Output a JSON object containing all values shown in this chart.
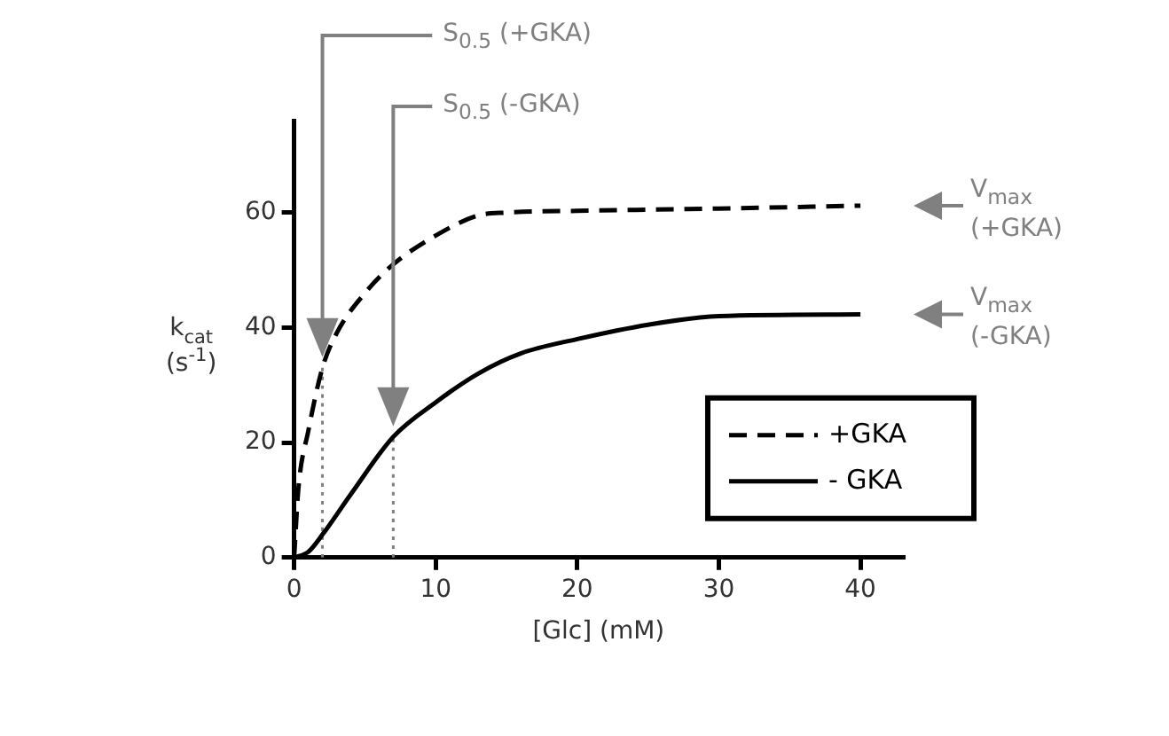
{
  "chart_data": {
    "type": "line",
    "xlabel": "[Glc] (mM)",
    "ylabel": "k$_{cat}$ (s$^{-1}$)",
    "xlim": [
      0,
      43
    ],
    "ylim": [
      0,
      76
    ],
    "xticks": [
      0,
      10,
      20,
      30,
      40
    ],
    "yticks": [
      0,
      20,
      40,
      60
    ],
    "legend": "bottom right",
    "marker": "none",
    "series": [
      {
        "name": "+GKA",
        "color": "#000000",
        "line_style": "dashed",
        "x": [
          0,
          0.3,
          1,
          2,
          3,
          5,
          7,
          10,
          13,
          15,
          20,
          30,
          40
        ],
        "values": [
          0,
          12,
          22,
          33,
          39,
          46,
          51,
          56,
          59.5,
          60,
          60.3,
          60.7,
          61.2
        ]
      },
      {
        "name": "- GKA",
        "color": "#000000",
        "line_style": "solid",
        "x": [
          0,
          1,
          2,
          4,
          7,
          10,
          13,
          16,
          20,
          25,
          30,
          40
        ],
        "values": [
          0,
          1,
          4,
          11,
          21,
          27,
          32,
          35.5,
          38,
          40.5,
          42,
          42.3
        ]
      },
      {
        "color": "#808080",
        "line_style": "dotted",
        "x": [
          2,
          2
        ],
        "values": [
          0,
          33
        ]
      },
      {
        "color": "#808080",
        "line_style": "dotted",
        "x": [
          7,
          7
        ],
        "values": [
          0,
          21
        ]
      }
    ],
    "annotations": [
      "S$_{0.5}$ (+GKA)",
      "S$_{0.5}$ (-GKA)",
      "V$_{max}$ (+GKA)",
      "V$_{max}$ (-GKA)"
    ]
  }
}
